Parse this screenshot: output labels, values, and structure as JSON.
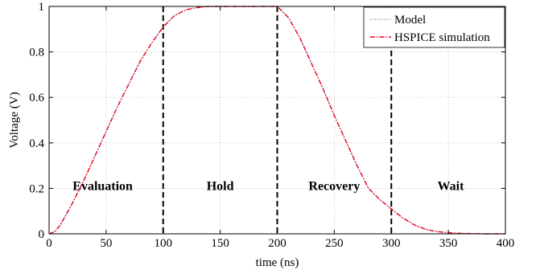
{
  "chart_data": {
    "type": "line",
    "title": "",
    "xlabel": "time (ns)",
    "ylabel": "Voltage (V)",
    "xlim": [
      0,
      400
    ],
    "ylim": [
      0,
      1
    ],
    "xticks": [
      0,
      50,
      100,
      150,
      200,
      250,
      300,
      350,
      400
    ],
    "yticks": [
      0,
      0.2,
      0.4,
      0.6,
      0.8,
      1
    ],
    "xtick_labels": [
      "0",
      "50",
      "100",
      "150",
      "200",
      "250",
      "300",
      "350",
      "400"
    ],
    "ytick_labels": [
      "0",
      "0.2",
      "0.4",
      "0.6",
      "0.8",
      "1"
    ],
    "grid": true,
    "legend_position": "top-right",
    "series": [
      {
        "name": "Model",
        "color": "#7f7f9f",
        "style": "dotted",
        "x": [
          0,
          5,
          10,
          20,
          30,
          40,
          50,
          60,
          70,
          80,
          90,
          100,
          110,
          120,
          130,
          140,
          150,
          160,
          170,
          180,
          190,
          200,
          210,
          220,
          230,
          240,
          250,
          260,
          270,
          280,
          290,
          300,
          310,
          320,
          330,
          340,
          350,
          360,
          380,
          400
        ],
        "y": [
          0,
          0.01,
          0.04,
          0.13,
          0.23,
          0.34,
          0.45,
          0.56,
          0.66,
          0.76,
          0.84,
          0.91,
          0.96,
          0.985,
          0.995,
          1.0,
          1.0,
          1.0,
          1.0,
          1.0,
          1.0,
          1.0,
          0.95,
          0.86,
          0.75,
          0.64,
          0.52,
          0.41,
          0.3,
          0.2,
          0.15,
          0.11,
          0.07,
          0.04,
          0.02,
          0.01,
          0.005,
          0.002,
          0,
          0
        ]
      },
      {
        "name": "HSPICE simulation",
        "color": "#e8001c",
        "style": "dash-dot",
        "x": [
          0,
          5,
          10,
          20,
          30,
          40,
          50,
          60,
          70,
          80,
          90,
          100,
          110,
          120,
          130,
          140,
          150,
          160,
          170,
          180,
          190,
          200,
          210,
          220,
          230,
          240,
          250,
          260,
          270,
          280,
          290,
          300,
          310,
          320,
          330,
          340,
          350,
          360,
          380,
          400
        ],
        "y": [
          0,
          0.01,
          0.04,
          0.13,
          0.23,
          0.34,
          0.45,
          0.56,
          0.66,
          0.76,
          0.84,
          0.91,
          0.96,
          0.985,
          0.995,
          1.0,
          1.0,
          1.0,
          1.0,
          1.0,
          1.0,
          1.0,
          0.95,
          0.86,
          0.75,
          0.64,
          0.52,
          0.41,
          0.3,
          0.2,
          0.15,
          0.11,
          0.07,
          0.04,
          0.02,
          0.01,
          0.005,
          0.002,
          0,
          0
        ]
      }
    ],
    "vertical_lines": [
      100,
      200,
      300
    ],
    "annotations": [
      {
        "text": "Evaluation",
        "x": 47,
        "y": 0.21
      },
      {
        "text": "Hold",
        "x": 150,
        "y": 0.21
      },
      {
        "text": "Recovery",
        "x": 250,
        "y": 0.21
      },
      {
        "text": "Wait",
        "x": 352,
        "y": 0.21
      }
    ]
  }
}
